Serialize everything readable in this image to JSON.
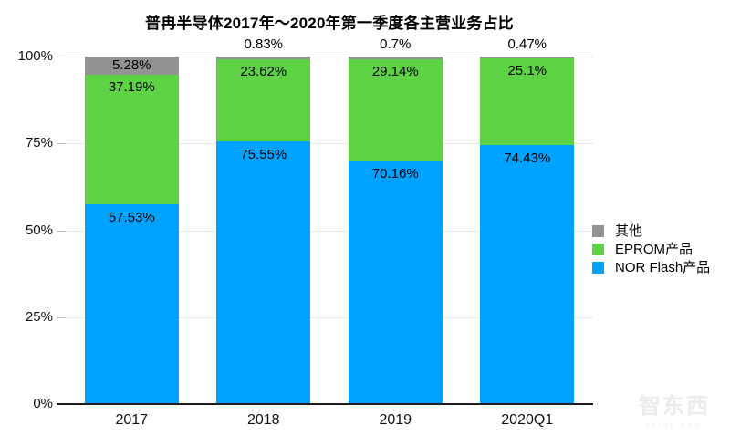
{
  "chart_data": {
    "type": "stacked_bar",
    "title": "普冉半导体2017年～2020年第一季度各主营业务占比",
    "categories": [
      "2017",
      "2018",
      "2019",
      "2020Q1"
    ],
    "series": [
      {
        "name": "NOR Flash产品",
        "color": "#00a2ff",
        "values": [
          57.53,
          75.55,
          70.16,
          74.43
        ]
      },
      {
        "name": "EPROM产品",
        "color": "#5ed245",
        "values": [
          37.19,
          23.62,
          29.14,
          25.1
        ]
      },
      {
        "name": "其他",
        "color": "#939393",
        "values": [
          5.28,
          0.83,
          0.7,
          0.47
        ]
      }
    ],
    "value_labels": {
      "nor": [
        "57.53%",
        "75.55%",
        "70.16%",
        "74.43%"
      ],
      "eprom": [
        "37.19%",
        "23.62%",
        "29.14%",
        "25.1%"
      ],
      "other": [
        "5.28%",
        "0.83%",
        "0.7%",
        "0.47%"
      ]
    },
    "other_label_placement": [
      "inside",
      "above",
      "above",
      "above"
    ],
    "y_axis": {
      "tick_labels": [
        "0%",
        "25%",
        "50%",
        "75%",
        "100%"
      ],
      "min": 0,
      "max": 100,
      "grid": true
    },
    "legend": [
      {
        "label": "其他",
        "color": "#939393"
      },
      {
        "label": "EPROM产品",
        "color": "#5ed245"
      },
      {
        "label": "NOR Flash产品",
        "color": "#00a2ff"
      }
    ],
    "legend_position": "right"
  },
  "watermark": {
    "logo": "智东西",
    "domain": "zhidx.com"
  }
}
